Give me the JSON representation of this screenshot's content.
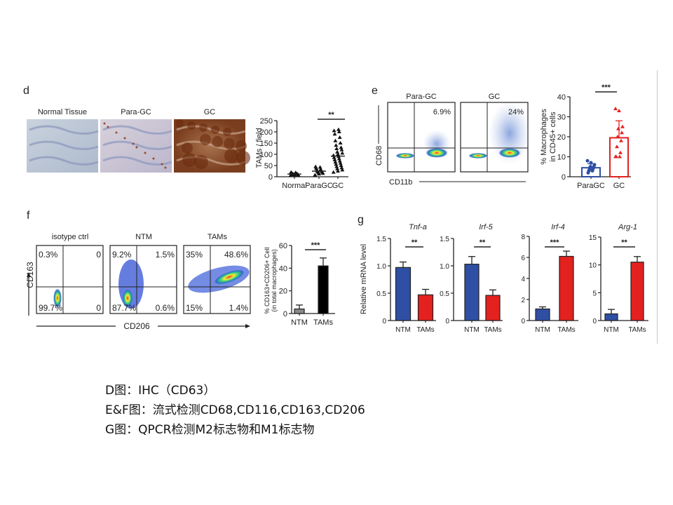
{
  "panels": {
    "d": {
      "letter": "d",
      "image_titles": [
        "Normal Tissue",
        "Para-GC",
        "GC"
      ]
    },
    "e": {
      "letter": "e",
      "plot_titles": [
        "Para-GC",
        "GC"
      ],
      "gate_values": [
        "6.9%",
        "24%"
      ],
      "x_axis": "CD11b",
      "y_axis": "CD68"
    },
    "f": {
      "letter": "f",
      "plot_titles": [
        "isotype ctrl",
        "NTM",
        "TAMs"
      ],
      "quadrants": [
        [
          "0.3%",
          "0",
          "99.7%",
          "0"
        ],
        [
          "9.2%",
          "1.5%",
          "87.7%",
          "0.6%"
        ],
        [
          "35%",
          "48.6%",
          "15%",
          "1.4%"
        ]
      ],
      "x_axis": "CD206",
      "y_axis": "CD163"
    },
    "g": {
      "letter": "g"
    }
  },
  "colors": {
    "blue": "#2e4fa3",
    "red": "#e3211f",
    "black": "#000000",
    "gray": "#888888"
  },
  "chart_data": [
    {
      "id": "d",
      "type": "scatter",
      "ylabel": "TAMs / field",
      "categories": [
        "Normal",
        "ParaGC",
        "GC"
      ],
      "ylim": [
        0,
        250
      ],
      "yticks": [
        0,
        50,
        100,
        150,
        200,
        250
      ],
      "series": [
        {
          "name": "Normal",
          "values": [
            5,
            7,
            8,
            9,
            10,
            11,
            12,
            12,
            13,
            14,
            15,
            16,
            18,
            20
          ],
          "mean": 12
        },
        {
          "name": "ParaGC",
          "values": [
            8,
            12,
            15,
            18,
            20,
            22,
            24,
            26,
            28,
            30,
            33,
            38,
            42,
            45
          ],
          "mean": 25
        },
        {
          "name": "GC",
          "values": [
            20,
            25,
            30,
            35,
            40,
            45,
            50,
            55,
            60,
            65,
            70,
            75,
            80,
            85,
            90,
            95,
            100,
            105,
            110,
            120,
            125,
            130,
            140,
            150,
            160,
            175,
            190,
            200,
            205,
            210
          ],
          "mean": 92
        }
      ],
      "significance": "**"
    },
    {
      "id": "e",
      "type": "bar",
      "ylabel": "% Macrophages in CD45+ cells",
      "ylabel_lines": [
        "% Macrophages",
        "in CD45+ cells"
      ],
      "categories": [
        "ParaGC",
        "GC"
      ],
      "ylim": [
        0,
        40
      ],
      "yticks": [
        0,
        10,
        20,
        30,
        40
      ],
      "values": [
        4.5,
        19.5
      ],
      "errors": [
        2,
        8.5
      ],
      "points": [
        [
          8,
          7,
          6,
          5,
          5,
          4,
          4,
          3,
          3,
          2
        ],
        [
          34,
          33,
          25,
          24,
          22,
          20,
          18,
          15,
          12,
          10,
          10,
          10
        ]
      ],
      "significance": "***"
    },
    {
      "id": "f",
      "type": "bar",
      "ylabel": "% CD163+CD206+ Cell (in total macrophages)",
      "ylabel_lines": [
        "% CD163+CD206+ Cell",
        "(in total macrophages)"
      ],
      "categories": [
        "NTM",
        "TAMs"
      ],
      "ylim": [
        0,
        60
      ],
      "yticks": [
        0,
        20,
        40,
        60
      ],
      "values": [
        4,
        42
      ],
      "errors": [
        3.5,
        7
      ],
      "significance": "***"
    },
    {
      "id": "g1",
      "type": "bar",
      "title": "Tnf-a",
      "ylabel": "Relative mRNA level",
      "categories": [
        "NTM",
        "TAMs"
      ],
      "ylim": [
        0,
        1.5
      ],
      "yticks": [
        "0",
        "0.5",
        "1.0",
        "1.5"
      ],
      "values": [
        0.97,
        0.47
      ],
      "errors": [
        0.1,
        0.1
      ],
      "significance": "**"
    },
    {
      "id": "g2",
      "type": "bar",
      "title": "Irf-5",
      "categories": [
        "NTM",
        "TAMs"
      ],
      "ylim": [
        0,
        1.5
      ],
      "yticks": [
        "0",
        "0.5",
        "1.0",
        "1.5"
      ],
      "values": [
        1.03,
        0.46
      ],
      "errors": [
        0.14,
        0.1
      ],
      "significance": "**"
    },
    {
      "id": "g3",
      "type": "bar",
      "title": "Irf-4",
      "categories": [
        "NTM",
        "TAMs"
      ],
      "ylim": [
        0,
        8
      ],
      "yticks": [
        "0",
        "2",
        "4",
        "6",
        "8"
      ],
      "values": [
        1.1,
        6.1
      ],
      "errors": [
        0.2,
        0.5
      ],
      "significance": "***"
    },
    {
      "id": "g4",
      "type": "bar",
      "title": "Arg-1",
      "categories": [
        "NTM",
        "TAMs"
      ],
      "ylim": [
        0,
        15
      ],
      "yticks": [
        "0",
        "5",
        "10",
        "15"
      ],
      "values": [
        1.2,
        10.5
      ],
      "errors": [
        0.8,
        1.0
      ],
      "significance": "**"
    }
  ],
  "captions": [
    "D图：IHC（CD63）",
    "E&F图：流式检测CD68,CD116,CD163,CD206",
    "G图：QPCR检测M2标志物和M1标志物"
  ]
}
